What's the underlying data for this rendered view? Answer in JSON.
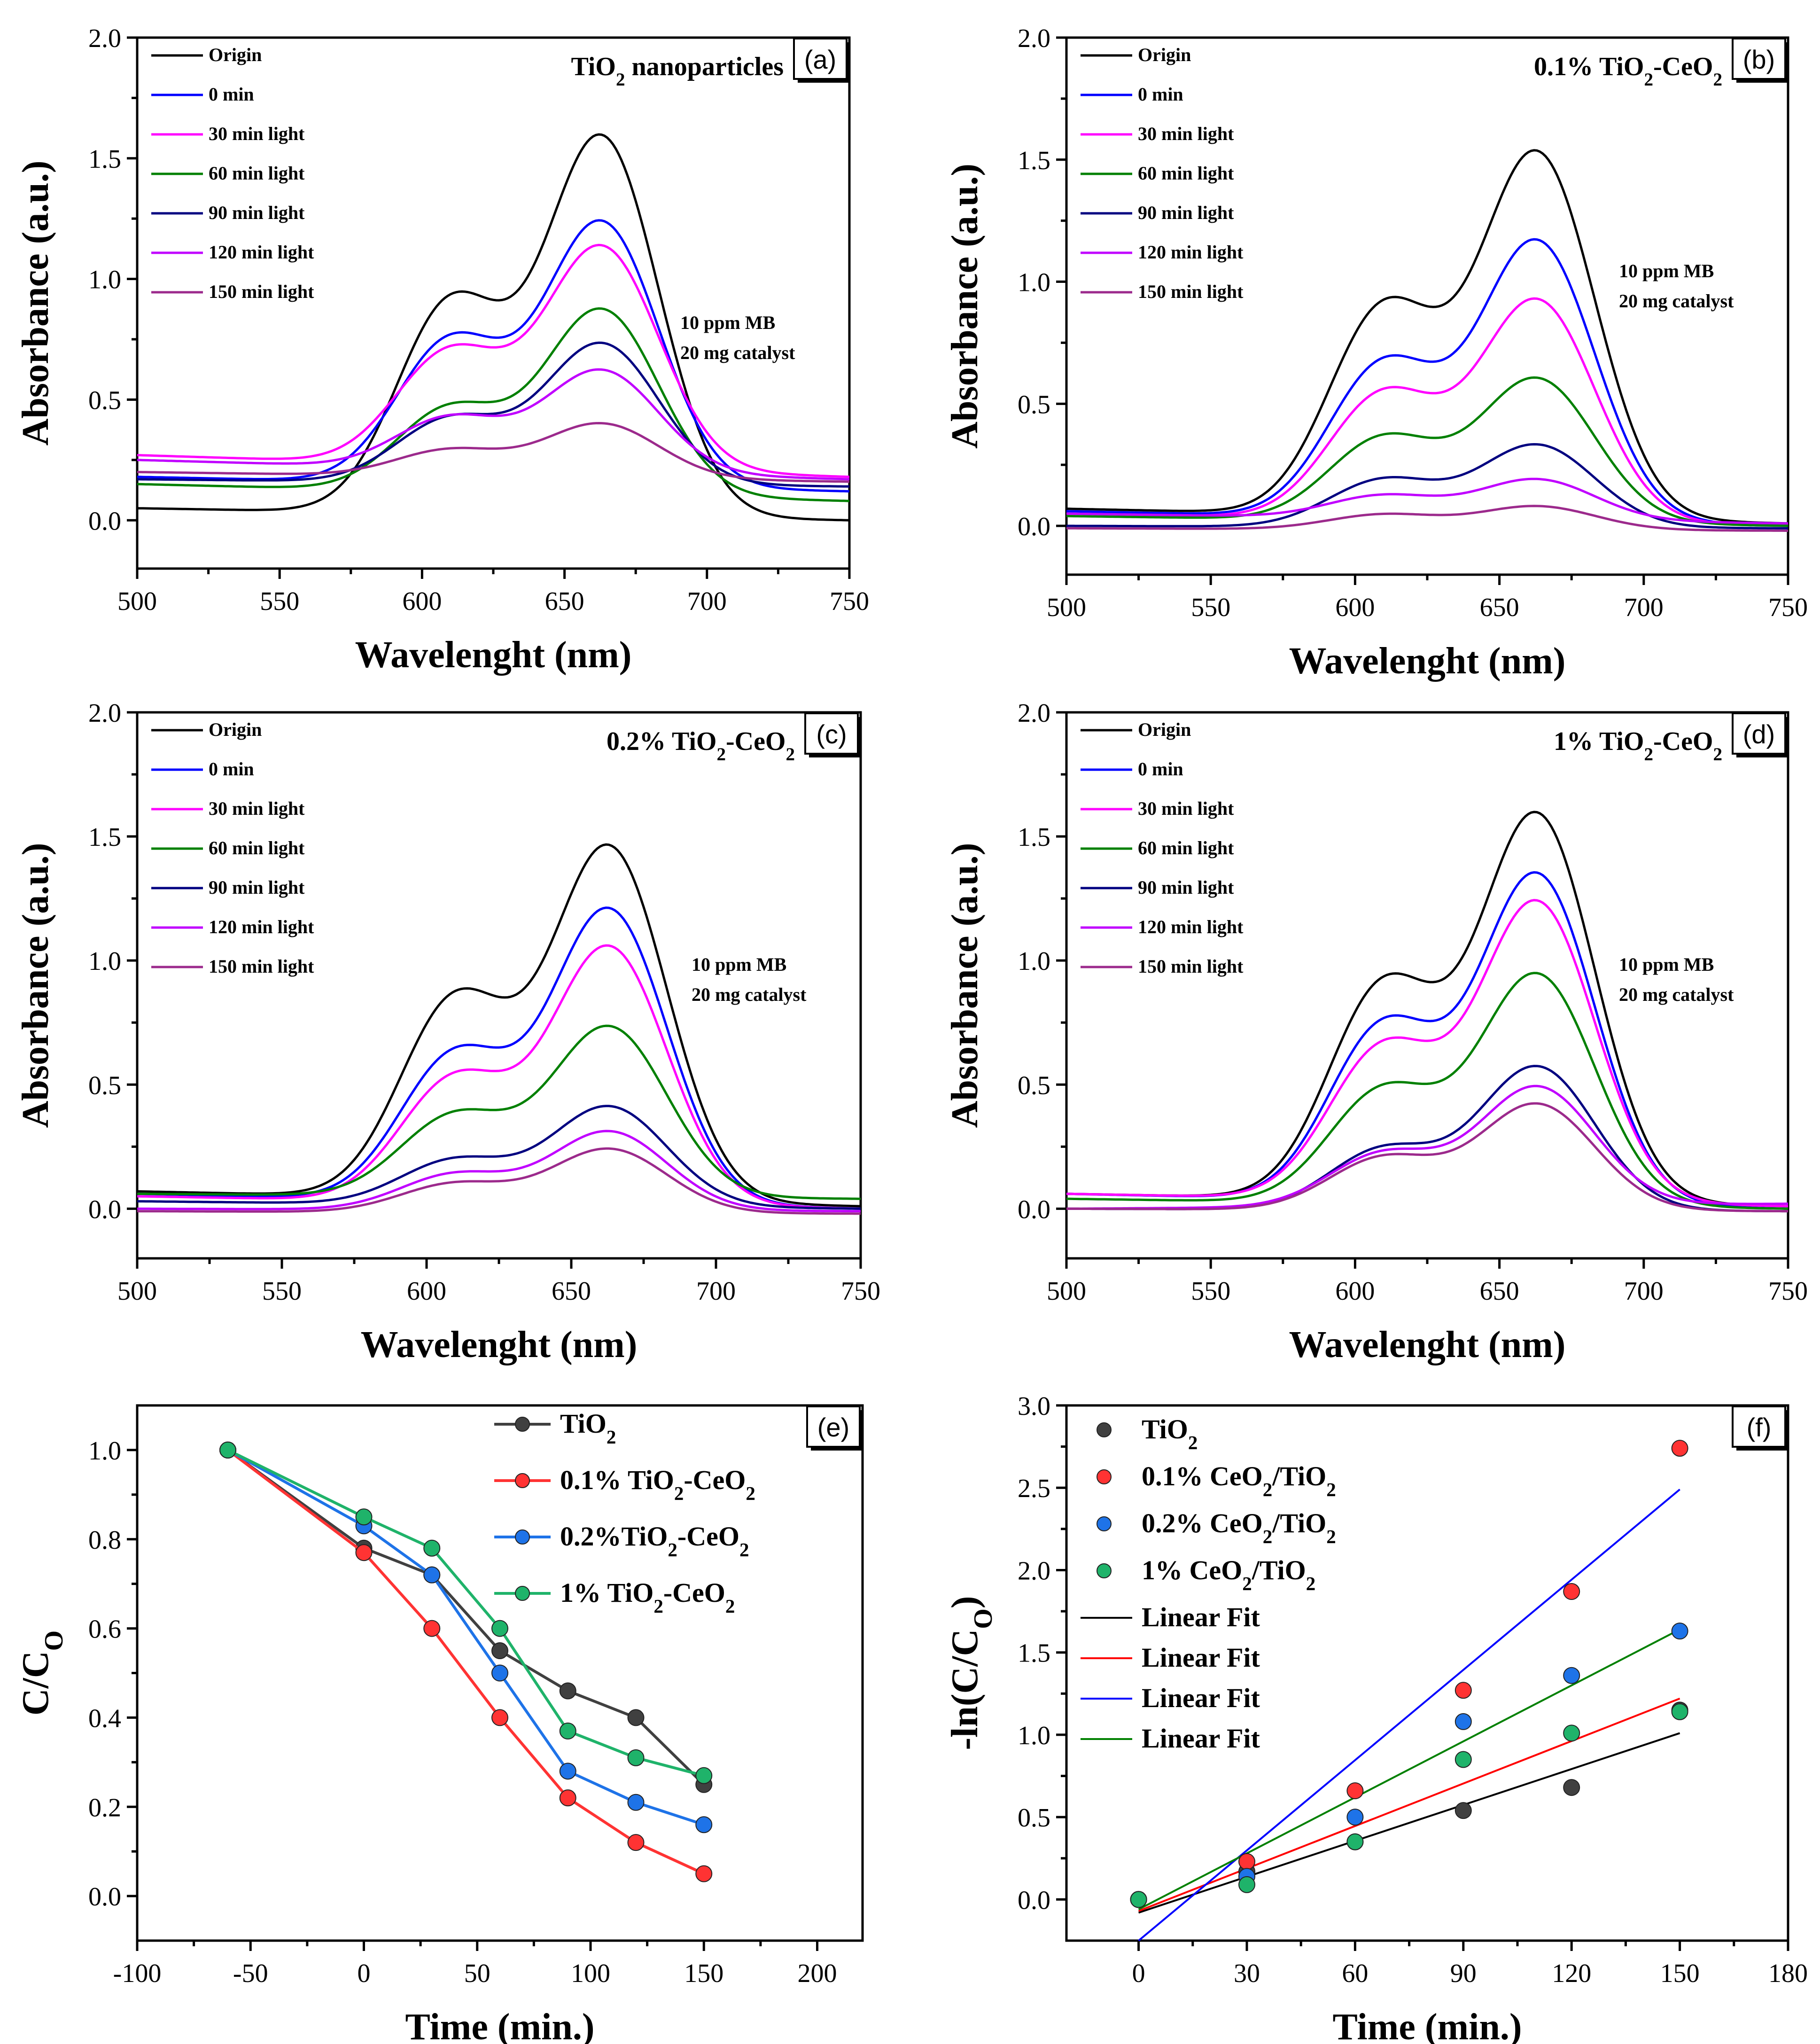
{
  "figure": {
    "description_free": true
  },
  "chart_data": [
    {
      "panel": "(a)",
      "type": "line",
      "title": "TiO2 nanoparticles",
      "title_main": "TiO",
      "title_sub": "2",
      "title_rest": " nanoparticles",
      "xlabel": "Wavelenght (nm)",
      "ylabel": "Absorbance (a.u.)",
      "xlim": [
        500,
        750
      ],
      "ylim": [
        -0.2,
        2.0
      ],
      "xticks": [
        500,
        550,
        600,
        650,
        700,
        750
      ],
      "yticks": [
        0.0,
        0.5,
        1.0,
        1.5,
        2.0
      ],
      "annotation": [
        "10 ppm MB",
        "20 mg catalyst"
      ],
      "series": [
        {
          "name": "Origin",
          "color": "#000000",
          "base500": 0.05,
          "base750": 0.0,
          "peak": 1.58,
          "shoulder": 0.95,
          "baseline_lift": 0
        },
        {
          "name": "0 min",
          "color": "#0000ff",
          "base500": 0.18,
          "base750": 0.12,
          "peak": 1.23,
          "shoulder": 0.78,
          "baseline_lift": 0
        },
        {
          "name": "30 min light",
          "color": "#ff00ff",
          "base500": 0.27,
          "base750": 0.18,
          "peak": 1.13,
          "shoulder": 0.73,
          "baseline_lift": 0
        },
        {
          "name": "60 min light",
          "color": "#008000",
          "base500": 0.15,
          "base750": 0.08,
          "peak": 0.87,
          "shoulder": 0.49,
          "baseline_lift": 0
        },
        {
          "name": "90 min light",
          "color": "#000080",
          "base500": 0.17,
          "base750": 0.14,
          "peak": 0.73,
          "shoulder": 0.44,
          "baseline_lift": 0
        },
        {
          "name": "120 min light",
          "color": "#c000ff",
          "base500": 0.25,
          "base750": 0.17,
          "peak": 0.62,
          "shoulder": 0.44,
          "baseline_lift": 0
        },
        {
          "name": "150 min light",
          "color": "#9c2a8c",
          "base500": 0.2,
          "base750": 0.16,
          "peak": 0.4,
          "shoulder": 0.3,
          "baseline_lift": 0
        }
      ]
    },
    {
      "panel": "(b)",
      "type": "line",
      "title": "0.1% TiO2-CeO2",
      "title_main": "0.1% TiO",
      "title_sub": "2",
      "title_rest": "-CeO",
      "title_sub2": "2",
      "xlabel": "Wavelenght (nm)",
      "ylabel": "Absorbance (a.u.)",
      "xlim": [
        500,
        750
      ],
      "ylim": [
        -0.2,
        2.0
      ],
      "xticks": [
        500,
        550,
        600,
        650,
        700,
        750
      ],
      "yticks": [
        0.0,
        0.5,
        1.0,
        1.5,
        2.0
      ],
      "annotation": [
        "10 ppm MB",
        "20 mg catalyst"
      ],
      "series": [
        {
          "name": "Origin",
          "color": "#000000",
          "base500": 0.07,
          "base750": 0.01,
          "peak": 1.52,
          "shoulder": 0.94
        },
        {
          "name": "0 min",
          "color": "#0000ff",
          "base500": 0.06,
          "base750": 0.0,
          "peak": 1.16,
          "shoulder": 0.7
        },
        {
          "name": "30 min light",
          "color": "#ff00ff",
          "base500": 0.05,
          "base750": 0.0,
          "peak": 0.92,
          "shoulder": 0.57
        },
        {
          "name": "60 min light",
          "color": "#008000",
          "base500": 0.04,
          "base750": 0.0,
          "peak": 0.6,
          "shoulder": 0.38
        },
        {
          "name": "90 min light",
          "color": "#000080",
          "base500": 0.0,
          "base750": -0.01,
          "peak": 0.33,
          "shoulder": 0.2
        },
        {
          "name": "120 min light",
          "color": "#c000ff",
          "base500": 0.05,
          "base750": 0.01,
          "peak": 0.19,
          "shoulder": 0.13
        },
        {
          "name": "150 min light",
          "color": "#9c2a8c",
          "base500": -0.01,
          "base750": -0.02,
          "peak": 0.08,
          "shoulder": 0.05
        }
      ]
    },
    {
      "panel": "(c)",
      "type": "line",
      "title": "0.2% TiO2-CeO2",
      "title_main": "0.2% TiO",
      "title_sub": "2",
      "title_rest": "-CeO",
      "title_sub2": "2",
      "xlabel": "Wavelenght (nm)",
      "ylabel": "Absorbance (a.u.)",
      "xlim": [
        500,
        750
      ],
      "ylim": [
        -0.2,
        2.0
      ],
      "xticks": [
        500,
        550,
        600,
        650,
        700,
        750
      ],
      "yticks": [
        0.0,
        0.5,
        1.0,
        1.5,
        2.0
      ],
      "annotation": [
        "10 ppm MB",
        "20 mg catalyst"
      ],
      "series": [
        {
          "name": "Origin",
          "color": "#000000",
          "base500": 0.07,
          "base750": 0.01,
          "peak": 1.45,
          "shoulder": 0.89
        },
        {
          "name": "0 min",
          "color": "#0000ff",
          "base500": 0.06,
          "base750": 0.0,
          "peak": 1.2,
          "shoulder": 0.66
        },
        {
          "name": "30 min light",
          "color": "#ff00ff",
          "base500": 0.05,
          "base750": 0.0,
          "peak": 1.05,
          "shoulder": 0.56
        },
        {
          "name": "60 min light",
          "color": "#008000",
          "base500": 0.06,
          "base750": 0.04,
          "peak": 0.73,
          "shoulder": 0.4
        },
        {
          "name": "90 min light",
          "color": "#000080",
          "base500": 0.03,
          "base750": 0.0,
          "peak": 0.41,
          "shoulder": 0.21
        },
        {
          "name": "120 min light",
          "color": "#c000ff",
          "base500": 0.0,
          "base750": -0.01,
          "peak": 0.31,
          "shoulder": 0.15
        },
        {
          "name": "150 min light",
          "color": "#9c2a8c",
          "base500": -0.01,
          "base750": -0.02,
          "peak": 0.24,
          "shoulder": 0.11
        }
      ]
    },
    {
      "panel": "(d)",
      "type": "line",
      "title": "1% TiO2-CeO2",
      "title_main": "1% TiO",
      "title_sub": "2",
      "title_rest": "-CeO",
      "title_sub2": "2",
      "xlabel": "Wavelenght (nm)",
      "ylabel": "Absorbance (a.u.)",
      "xlim": [
        500,
        750
      ],
      "ylim": [
        -0.2,
        2.0
      ],
      "xticks": [
        500,
        550,
        600,
        650,
        700,
        750
      ],
      "yticks": [
        0.0,
        0.5,
        1.0,
        1.5,
        2.0
      ],
      "annotation": [
        "10 ppm MB",
        "20 mg catalyst"
      ],
      "series": [
        {
          "name": "Origin",
          "color": "#000000",
          "base500": 0.06,
          "base750": 0.01,
          "peak": 1.58,
          "shoulder": 0.95
        },
        {
          "name": "0 min",
          "color": "#0000ff",
          "base500": 0.06,
          "base750": 0.0,
          "peak": 1.34,
          "shoulder": 0.78
        },
        {
          "name": "30 min light",
          "color": "#ff00ff",
          "base500": 0.06,
          "base750": 0.01,
          "peak": 1.23,
          "shoulder": 0.69
        },
        {
          "name": "60 min light",
          "color": "#008000",
          "base500": 0.04,
          "base750": 0.0,
          "peak": 0.94,
          "shoulder": 0.51
        },
        {
          "name": "90 min light",
          "color": "#000080",
          "base500": 0.0,
          "base750": -0.01,
          "peak": 0.57,
          "shoulder": 0.26
        },
        {
          "name": "120 min light",
          "color": "#c000ff",
          "base500": 0.0,
          "base750": 0.02,
          "peak": 0.49,
          "shoulder": 0.24
        },
        {
          "name": "150 min light",
          "color": "#9c2a8c",
          "base500": 0.0,
          "base750": -0.01,
          "peak": 0.42,
          "shoulder": 0.22
        }
      ]
    },
    {
      "panel": "(e)",
      "type": "line",
      "xlabel": "Time (min.)",
      "ylabel": "C/C",
      "ylabel_sub": "O",
      "xlim": [
        -100,
        220
      ],
      "ylim": [
        -0.1,
        1.1
      ],
      "xticks": [
        -100,
        -50,
        0,
        50,
        100,
        150,
        200
      ],
      "yticks": [
        0.0,
        0.2,
        0.4,
        0.6,
        0.8,
        1.0
      ],
      "x": [
        -60,
        0,
        30,
        60,
        90,
        120,
        150
      ],
      "series": [
        {
          "name": "TiO2",
          "label_main": "TiO",
          "label_sub": "2",
          "label_rest": "",
          "label_sub2": "",
          "color": "#404040",
          "values": [
            1.0,
            0.78,
            0.72,
            0.55,
            0.46,
            0.4,
            0.25
          ]
        },
        {
          "name": "0.1% TiO2-CeO2",
          "label_main": "0.1% TiO",
          "label_sub": "2",
          "label_rest": "-CeO",
          "label_sub2": "2",
          "color": "#ff3333",
          "values": [
            1.0,
            0.77,
            0.6,
            0.4,
            0.22,
            0.12,
            0.05
          ]
        },
        {
          "name": "0.2%TiO2-CeO2",
          "label_main": "0.2%TiO",
          "label_sub": "2",
          "label_rest": "-CeO",
          "label_sub2": "2",
          "color": "#1e73e8",
          "values": [
            1.0,
            0.83,
            0.72,
            0.5,
            0.28,
            0.21,
            0.16
          ]
        },
        {
          "name": "1% TiO2-CeO2",
          "label_main": "1% TiO",
          "label_sub": "2",
          "label_rest": "-CeO",
          "label_sub2": "2",
          "color": "#1fb36a",
          "values": [
            1.0,
            0.85,
            0.78,
            0.6,
            0.37,
            0.31,
            0.27
          ]
        }
      ]
    },
    {
      "panel": "(f)",
      "type": "scatter",
      "xlabel": "Time (min.)",
      "ylabel": "-ln(C/C",
      "ylabel_sub": "O",
      "ylabel_end": ")",
      "xlim": [
        -20,
        180
      ],
      "ylim": [
        -0.25,
        3.0
      ],
      "xticks": [
        0,
        30,
        60,
        90,
        120,
        150,
        180
      ],
      "yticks": [
        0.0,
        0.5,
        1.0,
        1.5,
        2.0,
        2.5,
        3.0
      ],
      "x": [
        0,
        30,
        60,
        90,
        120,
        150
      ],
      "series": [
        {
          "name": "TiO2",
          "label_main": "TiO",
          "label_sub": "2",
          "label_rest": "",
          "color": "#404040",
          "values": [
            0.0,
            0.17,
            0.35,
            0.54,
            0.68,
            1.15
          ]
        },
        {
          "name": "0.1% CeO2/TiO2",
          "label_main": "0.1% CeO",
          "label_sub": "2",
          "label_rest": "/TiO",
          "label_sub2": "2",
          "color": "#ff3333",
          "values": [
            0.0,
            0.23,
            0.66,
            1.27,
            1.87,
            2.74
          ]
        },
        {
          "name": "0.2% CeO2/TiO2",
          "label_main": "0.2% CeO",
          "label_sub": "2",
          "label_rest": "/TiO",
          "label_sub2": "2",
          "color": "#1e73e8",
          "values": [
            0.0,
            0.14,
            0.5,
            1.08,
            1.36,
            1.63
          ]
        },
        {
          "name": "1% CeO2/TiO2",
          "label_main": "1% CeO",
          "label_sub": "2",
          "label_rest": "/TiO",
          "label_sub2": "2",
          "color": "#1fb36a",
          "values": [
            0.0,
            0.09,
            0.35,
            0.85,
            1.01,
            1.14
          ]
        }
      ],
      "fits": [
        {
          "name": "Linear Fit",
          "color": "#000000",
          "x": [
            0,
            150
          ],
          "y": [
            -0.08,
            1.01
          ]
        },
        {
          "name": "Linear Fit",
          "color": "#ff0000",
          "x": [
            0,
            150
          ],
          "y": [
            -0.07,
            1.22
          ]
        },
        {
          "name": "Linear Fit",
          "color": "#0000ff",
          "x": [
            0,
            150
          ],
          "y": [
            -0.25,
            2.49
          ]
        },
        {
          "name": "Linear Fit",
          "color": "#008000",
          "x": [
            0,
            150
          ],
          "y": [
            -0.06,
            1.64
          ]
        }
      ]
    }
  ]
}
